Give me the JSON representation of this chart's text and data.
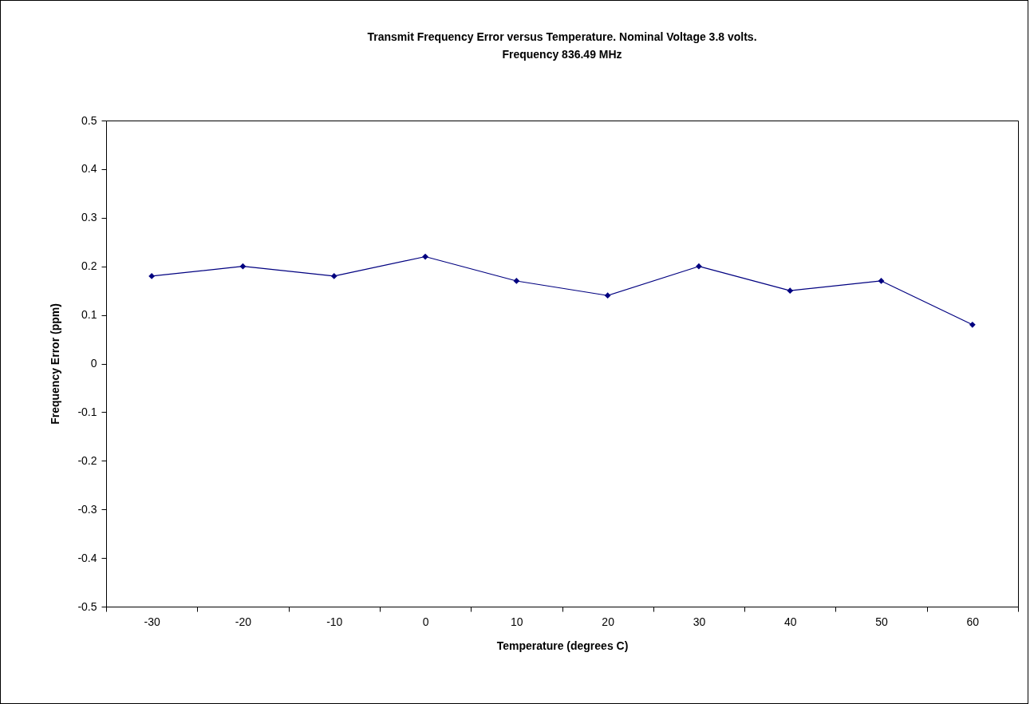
{
  "chart_data": {
    "type": "line",
    "title": "Transmit Frequency Error versus Temperature. Nominal Voltage 3.8 volts.\nFrequency 836.49 MHz",
    "xlabel": "Temperature (degrees C)",
    "ylabel": "Frequency Error (ppm)",
    "categories": [
      "-30",
      "-20",
      "-10",
      "0",
      "10",
      "20",
      "30",
      "40",
      "50",
      "60"
    ],
    "series": [
      {
        "color": "#000080",
        "values": [
          0.18,
          0.2,
          0.18,
          0.22,
          0.17,
          0.14,
          0.2,
          0.15,
          0.17,
          0.08
        ]
      }
    ],
    "ylim": [
      -0.5,
      0.5
    ],
    "yticks": [
      -0.5,
      -0.4,
      -0.3,
      -0.2,
      -0.1,
      0,
      0.1,
      0.2,
      0.3,
      0.4,
      0.5
    ],
    "grid": false,
    "legend": false,
    "marker": "diamond",
    "line_style": "solid"
  }
}
